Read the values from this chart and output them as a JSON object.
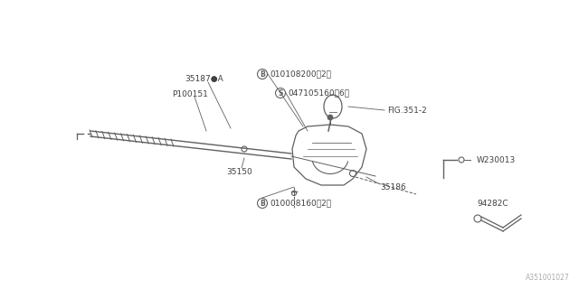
{
  "bg_color": "#ffffff",
  "line_color": "#606060",
  "text_color": "#404040",
  "fig_width": 6.4,
  "fig_height": 3.2,
  "dpi": 100,
  "watermark": "A351001027",
  "labels": {
    "B_top": "B",
    "B_top_text": "010108200（2）",
    "S_label": "S",
    "S_text": "047105160（6）",
    "fig351": "FIG.351-2",
    "35187A": "35187●A",
    "P100151": "P100151",
    "35150": "35150",
    "B_bot": "B",
    "B_bot_text": "010008160（2）",
    "35186": "35186",
    "W230013": "W230013",
    "94282C": "94282C"
  }
}
